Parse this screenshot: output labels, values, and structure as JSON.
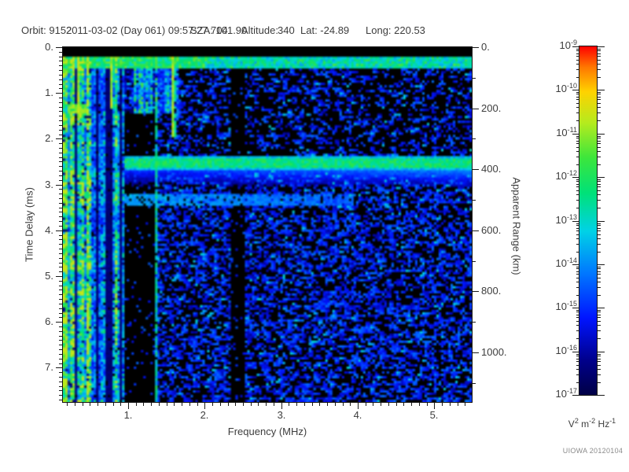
{
  "header": {
    "items": [
      "Orbit: 9152",
      "2011-03-02 (Day 061) 09:57:27.704",
      "SZA: 101.90",
      "Altitude:",
      "340",
      "Lat: -24.89",
      "Long: 220.53"
    ]
  },
  "chart_data": {
    "type": "heatmap",
    "subtype": "radar-sounder-ionogram-spectrogram",
    "xlabel": "Frequency (MHz)",
    "ylabel_left": "Time Delay (ms)",
    "ylabel_right": "Apparent Range (km)",
    "x_range_mhz": [
      0.147,
      5.49
    ],
    "y_range_ms": [
      0,
      7.75
    ],
    "y_right_range_km": [
      0,
      1162.5
    ],
    "x_ticks": {
      "values": [
        1,
        2,
        3,
        4,
        5
      ],
      "labels": [
        "1.",
        "2.",
        "3.",
        "4.",
        "5."
      ],
      "minor_step": 0.1
    },
    "y_ticks_left": {
      "values": [
        0,
        1,
        2,
        3,
        4,
        5,
        6,
        7
      ],
      "labels": [
        "0.",
        "1.",
        "2.",
        "3.",
        "4.",
        "5.",
        "6.",
        "7."
      ],
      "minor_step": 0.1
    },
    "y_ticks_right": {
      "values": [
        0,
        200,
        400,
        600,
        800,
        1000
      ],
      "labels": [
        "0.",
        "200.",
        "400.",
        "600.",
        "800.",
        "1000."
      ],
      "minor_step": 100
    },
    "colorbar": {
      "scale": "log",
      "mantissa_base": "10",
      "tick_exponents": [
        -9,
        -10,
        -11,
        -12,
        -13,
        -14,
        -15,
        -16,
        -17
      ],
      "unit_parts": [
        [
          "V",
          ""
        ],
        [
          "2",
          "sup"
        ],
        [
          " m",
          ""
        ],
        [
          "-2",
          "sup"
        ],
        [
          " Hz",
          ""
        ],
        [
          "-1",
          "sup"
        ]
      ]
    },
    "palette": [
      [
        0.0,
        [
          0,
          0,
          70
        ]
      ],
      [
        0.1,
        [
          0,
          0,
          140
        ]
      ],
      [
        0.22,
        [
          0,
          20,
          255
        ]
      ],
      [
        0.35,
        [
          0,
          120,
          255
        ]
      ],
      [
        0.47,
        [
          0,
          210,
          230
        ]
      ],
      [
        0.58,
        [
          0,
          225,
          120
        ]
      ],
      [
        0.68,
        [
          60,
          230,
          60
        ]
      ],
      [
        0.78,
        [
          180,
          235,
          30
        ]
      ],
      [
        0.87,
        [
          255,
          210,
          0
        ]
      ],
      [
        0.94,
        [
          255,
          120,
          0
        ]
      ],
      [
        1.0,
        [
          255,
          0,
          0
        ]
      ]
    ],
    "features": {
      "top_black_t": [
        0,
        0.22
      ],
      "leading_band": {
        "t": [
          0.22,
          0.42
        ],
        "f": [
          0.147,
          5.49
        ]
      },
      "stripes_bright_f": [
        0.147,
        0.5
      ],
      "stripes_mixed_f": [
        0.5,
        0.92
      ],
      "stripes_upper_f": [
        0.92,
        1.64
      ],
      "stripes_upper_t": [
        0.22,
        1.4
      ],
      "black_col_1": {
        "f": [
          0.95,
          1.33
        ],
        "t": [
          1.43,
          7.75
        ]
      },
      "black_col_2": {
        "f": [
          2.34,
          2.49
        ],
        "t": [
          0.5,
          7.75
        ]
      },
      "cyan_line": {
        "f": 1.36,
        "t": [
          1.4,
          7.75
        ]
      },
      "surface_echo": {
        "t": [
          2.37,
          2.66
        ],
        "f": [
          0.95,
          5.49
        ]
      },
      "echo_tail": {
        "t": [
          2.66,
          3.05
        ],
        "f": [
          0.95,
          5.49
        ]
      },
      "second_echo": {
        "t": [
          3.18,
          3.4
        ],
        "f": [
          0.95,
          3.9
        ]
      },
      "yellow_streaks": [
        {
          "f": 0.32,
          "t": [
            0.22,
            1.55
          ]
        },
        {
          "f": 0.78,
          "t": [
            0.22,
            1.3
          ]
        },
        {
          "f": 1.57,
          "t": [
            0.22,
            1.9
          ]
        }
      ],
      "yellow_patch": {
        "f": [
          0.2,
          0.42
        ],
        "t": [
          1.22,
          1.4
        ]
      }
    },
    "speckle_regions": [
      {
        "f": [
          0.92,
          1.64
        ],
        "t": [
          0.42,
          2.37
        ],
        "density": 0.45
      },
      {
        "f": [
          1.64,
          2.34
        ],
        "t": [
          0.42,
          2.37
        ],
        "density": 0.33
      },
      {
        "f": [
          2.49,
          5.49
        ],
        "t": [
          0.42,
          2.37
        ],
        "density": 0.26
      },
      {
        "f": [
          1.33,
          2.34
        ],
        "t": [
          2.37,
          7.75
        ],
        "density": 0.42
      },
      {
        "f": [
          2.49,
          5.49
        ],
        "t": [
          2.37,
          7.75
        ],
        "density": 0.44
      },
      {
        "f": [
          0.95,
          1.33
        ],
        "t": [
          2.37,
          7.75
        ],
        "density": 0.08
      },
      {
        "f": [
          2.34,
          2.49
        ],
        "t": [
          0.5,
          7.75
        ],
        "density": 0.05
      }
    ],
    "credit": "UIOWA 20120104"
  }
}
